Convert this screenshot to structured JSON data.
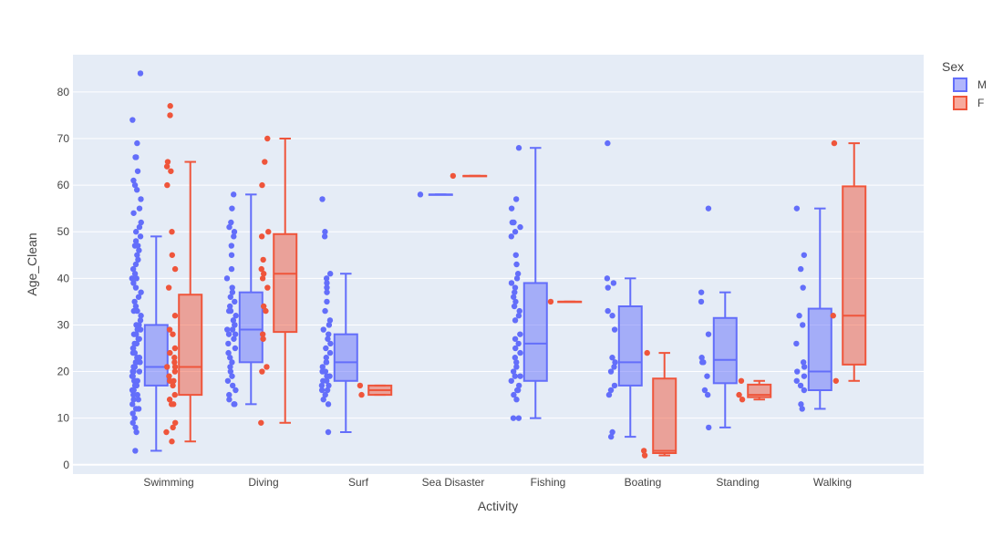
{
  "chart_data": {
    "type": "box",
    "xlabel": "Activity",
    "ylabel": "Age_Clean",
    "ylim": [
      -2,
      88
    ],
    "yticks": [
      0,
      10,
      20,
      30,
      40,
      50,
      60,
      70,
      80
    ],
    "categories": [
      "Swimming",
      "Diving",
      "Surf",
      "Sea Disaster",
      "Fishing",
      "Boating",
      "Standing",
      "Walking"
    ],
    "legend": {
      "title": "Sex",
      "placement": "top-right"
    },
    "grid": true,
    "series": [
      {
        "name": "M",
        "color": "#636efa",
        "boxes": [
          {
            "category": "Swimming",
            "min": 3,
            "q1": 17,
            "median": 21,
            "q3": 30,
            "max": 49,
            "points": [
              84,
              74,
              69,
              66,
              66,
              63,
              61,
              60,
              59,
              57,
              55,
              54,
              52,
              51,
              50,
              49,
              48,
              47,
              47,
              46,
              45,
              44,
              43,
              42,
              41,
              40,
              40,
              39,
              38,
              37,
              36,
              35,
              34,
              33,
              33,
              32,
              31,
              30,
              30,
              29,
              29,
              28,
              28,
              27,
              27,
              26,
              26,
              25,
              25,
              24,
              24,
              23,
              23,
              22,
              22,
              22,
              21,
              21,
              21,
              20,
              20,
              20,
              19,
              19,
              19,
              18,
              18,
              18,
              17,
              17,
              17,
              16,
              16,
              16,
              15,
              15,
              14,
              14,
              13,
              12,
              12,
              11,
              10,
              9,
              8,
              7,
              3
            ]
          },
          {
            "category": "Diving",
            "min": 13,
            "q1": 22,
            "median": 29,
            "q3": 37,
            "max": 58,
            "points": [
              58,
              55,
              52,
              51,
              50,
              49,
              47,
              45,
              42,
              40,
              38,
              37,
              36,
              35,
              34,
              33,
              33,
              32,
              31,
              30,
              30,
              29,
              29,
              28,
              28,
              27,
              26,
              25,
              24,
              23,
              22,
              21,
              20,
              19,
              18,
              17,
              16,
              15,
              14,
              13,
              13
            ]
          },
          {
            "category": "Surf",
            "min": 7,
            "q1": 18,
            "median": 22,
            "q3": 28,
            "max": 41,
            "points": [
              57,
              50,
              49,
              41,
              40,
              39,
              38,
              37,
              35,
              33,
              31,
              30,
              29,
              28,
              27,
              26,
              25,
              24,
              23,
              22,
              22,
              21,
              20,
              20,
              19,
              19,
              18,
              18,
              17,
              17,
              16,
              16,
              15,
              14,
              13,
              7
            ]
          },
          {
            "category": "Sea Disaster",
            "min": 58,
            "q1": 58,
            "median": 58,
            "q3": 58,
            "max": 58,
            "points": [
              58
            ]
          },
          {
            "category": "Fishing",
            "min": 10,
            "q1": 18,
            "median": 26,
            "q3": 39,
            "max": 68,
            "points": [
              68,
              57,
              55,
              52,
              52,
              51,
              50,
              49,
              45,
              43,
              41,
              40,
              39,
              38,
              37,
              36,
              35,
              34,
              33,
              32,
              31,
              28,
              27,
              26,
              25,
              24,
              23,
              22,
              21,
              20,
              19,
              19,
              18,
              17,
              16,
              16,
              15,
              14,
              10,
              10
            ]
          },
          {
            "category": "Boating",
            "min": 6,
            "q1": 17,
            "median": 22,
            "q3": 34,
            "max": 40,
            "points": [
              69,
              40,
              39,
              38,
              33,
              32,
              29,
              23,
              22,
              21,
              20,
              17,
              16,
              15,
              7,
              6
            ]
          },
          {
            "category": "Standing",
            "min": 8,
            "q1": 17.5,
            "median": 22.5,
            "q3": 31.5,
            "max": 37,
            "points": [
              55,
              37,
              35,
              28,
              23,
              22,
              22,
              19,
              16,
              15,
              8
            ]
          },
          {
            "category": "Walking",
            "min": 12,
            "q1": 16,
            "median": 20,
            "q3": 33.5,
            "max": 55,
            "points": [
              55,
              45,
              42,
              38,
              32,
              30,
              26,
              22,
              21,
              20,
              19,
              18,
              17,
              16,
              13,
              12
            ]
          }
        ]
      },
      {
        "name": "F",
        "color": "#ef553b",
        "boxes": [
          {
            "category": "Swimming",
            "min": 5,
            "q1": 15,
            "median": 21,
            "q3": 36.5,
            "max": 65,
            "points": [
              77,
              75,
              65,
              64,
              63,
              60,
              50,
              45,
              42,
              38,
              32,
              29,
              28,
              25,
              24,
              23,
              22,
              21,
              21,
              20,
              19,
              18,
              18,
              17,
              15,
              14,
              13,
              13,
              9,
              8,
              7,
              5
            ]
          },
          {
            "category": "Diving",
            "min": 9,
            "q1": 28.5,
            "median": 41,
            "q3": 49.5,
            "max": 70,
            "points": [
              70,
              65,
              60,
              50,
              49,
              44,
              42,
              41,
              40,
              38,
              34,
              33,
              28,
              27,
              21,
              20,
              9
            ]
          },
          {
            "category": "Surf",
            "min": 15,
            "q1": 15,
            "median": 16,
            "q3": 17,
            "max": 17,
            "points": [
              17,
              15
            ]
          },
          {
            "category": "Sea Disaster",
            "min": 62,
            "q1": 62,
            "median": 62,
            "q3": 62,
            "max": 62,
            "points": [
              62
            ]
          },
          {
            "category": "Fishing",
            "min": 35,
            "q1": 35,
            "median": 35,
            "q3": 35,
            "max": 35,
            "points": [
              35
            ]
          },
          {
            "category": "Boating",
            "min": 2,
            "q1": 2.5,
            "median": 3,
            "q3": 18.5,
            "max": 24,
            "points": [
              24,
              3,
              2
            ]
          },
          {
            "category": "Standing",
            "min": 14,
            "q1": 14.5,
            "median": 15,
            "q3": 17.2,
            "max": 18,
            "points": [
              18,
              15,
              14
            ]
          },
          {
            "category": "Walking",
            "min": 18,
            "q1": 21.5,
            "median": 32,
            "q3": 59.75,
            "max": 69,
            "points": [
              69,
              32,
              18
            ]
          }
        ]
      }
    ]
  }
}
